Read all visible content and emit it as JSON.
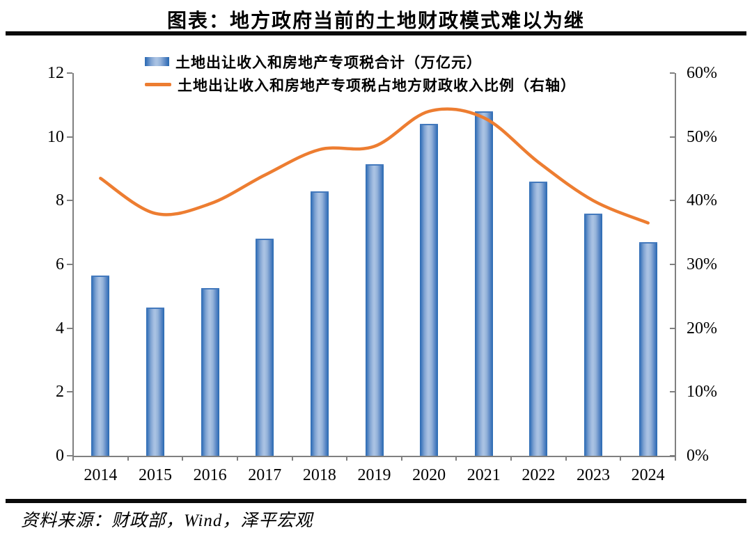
{
  "title": "图表：地方政府当前的土地财政模式难以为继",
  "source": "资料来源：财政部，Wind，泽平宏观",
  "colors": {
    "bar_dark": "#2E6DB4",
    "bar_light": "#AAC3E3",
    "line": "#ED7D31",
    "axis": "#808080",
    "rule": "#0a0a0a"
  },
  "chart_data": {
    "type": "bar",
    "subtype": "bar+line combo, dual axis",
    "categories": [
      "2014",
      "2015",
      "2016",
      "2017",
      "2018",
      "2019",
      "2020",
      "2021",
      "2022",
      "2023",
      "2024"
    ],
    "series": [
      {
        "name": "土地出让收入和房地产专项税合计（万亿元）",
        "type": "bar",
        "axis": "left",
        "values": [
          5.65,
          4.65,
          5.25,
          6.8,
          8.3,
          9.15,
          10.4,
          10.8,
          8.6,
          7.6,
          6.7
        ]
      },
      {
        "name": "土地出让收入和房地产专项税占地方财政收入比例（右轴）",
        "type": "line",
        "axis": "right",
        "values": [
          43.5,
          38,
          39.5,
          44,
          48,
          48.5,
          54,
          53,
          46,
          40,
          36.5
        ]
      }
    ],
    "left_axis": {
      "min": 0,
      "max": 12,
      "ticks": [
        "0",
        "2",
        "4",
        "6",
        "8",
        "10",
        "12"
      ]
    },
    "right_axis": {
      "min": 0,
      "max": 60,
      "ticks": [
        "0%",
        "10%",
        "20%",
        "30%",
        "40%",
        "50%",
        "60%"
      ]
    },
    "legend_position": "top-left-inside",
    "grid": false
  }
}
